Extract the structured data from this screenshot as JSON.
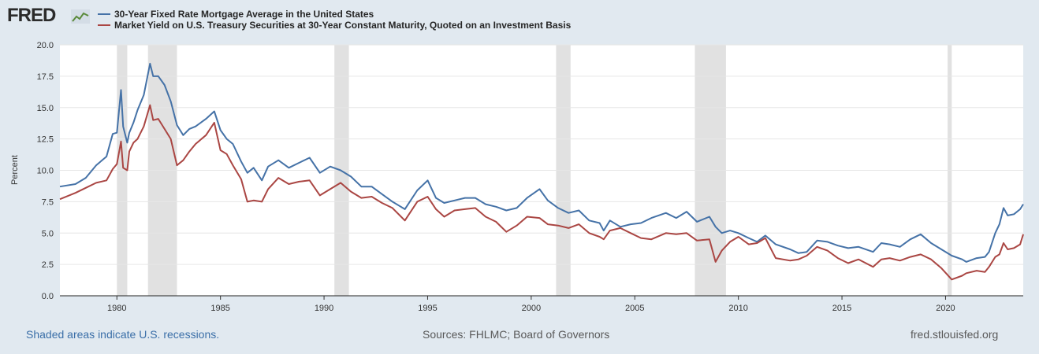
{
  "logo": {
    "text": "FRED",
    "icon": "line-chart-icon"
  },
  "colors": {
    "series1": "#4572a7",
    "series2": "#aa4643",
    "recession": "#e1e1e1",
    "grid": "#e6e6e6",
    "axis": "#222222"
  },
  "footer": {
    "note": "Shaded areas indicate U.S. recessions.",
    "sources": "Sources: FHLMC; Board of Governors",
    "site": "fred.stlouisfed.org"
  },
  "chart_data": {
    "type": "line",
    "ylabel": "Percent",
    "xlabel": "",
    "xlim": [
      1977.25,
      2023.75
    ],
    "ylim": [
      0,
      20
    ],
    "x_ticks": [
      "1980",
      "1985",
      "1990",
      "1995",
      "2000",
      "2005",
      "2010",
      "2015",
      "2020"
    ],
    "y_ticks": [
      "0.0",
      "2.5",
      "5.0",
      "7.5",
      "10.0",
      "12.5",
      "15.0",
      "17.5",
      "20.0"
    ],
    "grid": true,
    "legend_position": "top-left",
    "recessions": [
      [
        1980.0,
        1980.5
      ],
      [
        1981.5,
        1982.9
      ],
      [
        1990.5,
        1991.2
      ],
      [
        2001.2,
        2001.9
      ],
      [
        2007.9,
        2009.4
      ],
      [
        2020.1,
        2020.3
      ]
    ],
    "series": [
      {
        "name": "30-Year Fixed Rate Mortgage Average in the United States",
        "x": [
          1977.25,
          1978.0,
          1978.5,
          1979.0,
          1979.5,
          1979.8,
          1980.0,
          1980.2,
          1980.3,
          1980.5,
          1980.6,
          1980.8,
          1981.0,
          1981.3,
          1981.6,
          1981.75,
          1982.0,
          1982.3,
          1982.6,
          1982.9,
          1983.2,
          1983.5,
          1983.8,
          1984.3,
          1984.7,
          1985.0,
          1985.3,
          1985.6,
          1986.0,
          1986.3,
          1986.6,
          1987.0,
          1987.3,
          1987.8,
          1988.3,
          1988.8,
          1989.3,
          1989.8,
          1990.3,
          1990.8,
          1991.3,
          1991.8,
          1992.3,
          1992.8,
          1993.3,
          1993.9,
          1994.5,
          1995.0,
          1995.4,
          1995.8,
          1996.3,
          1996.8,
          1997.3,
          1997.8,
          1998.3,
          1998.8,
          1999.3,
          1999.8,
          2000.4,
          2000.8,
          2001.3,
          2001.8,
          2002.3,
          2002.8,
          2003.3,
          2003.5,
          2003.8,
          2004.3,
          2004.8,
          2005.3,
          2005.8,
          2006.5,
          2007.0,
          2007.5,
          2008.0,
          2008.6,
          2008.9,
          2009.2,
          2009.6,
          2010.0,
          2010.5,
          2010.9,
          2011.3,
          2011.8,
          2012.5,
          2012.9,
          2013.3,
          2013.8,
          2014.3,
          2014.8,
          2015.3,
          2015.8,
          2016.5,
          2016.9,
          2017.3,
          2017.8,
          2018.3,
          2018.8,
          2019.3,
          2019.8,
          2020.3,
          2020.8,
          2021.0,
          2021.5,
          2021.9,
          2022.1,
          2022.4,
          2022.6,
          2022.8,
          2023.0,
          2023.3,
          2023.6,
          2023.75
        ],
        "values": [
          8.7,
          8.9,
          9.4,
          10.4,
          11.1,
          12.9,
          13.0,
          16.4,
          13.5,
          12.2,
          13.0,
          13.8,
          14.8,
          16.0,
          18.5,
          17.5,
          17.5,
          16.8,
          15.5,
          13.6,
          12.8,
          13.3,
          13.5,
          14.1,
          14.7,
          13.2,
          12.5,
          12.1,
          10.7,
          9.8,
          10.2,
          9.2,
          10.3,
          10.8,
          10.2,
          10.6,
          11.0,
          9.8,
          10.3,
          10.0,
          9.5,
          8.7,
          8.7,
          8.1,
          7.5,
          6.9,
          8.4,
          9.2,
          7.8,
          7.4,
          7.6,
          7.8,
          7.8,
          7.3,
          7.1,
          6.8,
          7.0,
          7.8,
          8.5,
          7.6,
          7.0,
          6.6,
          6.8,
          6.0,
          5.8,
          5.2,
          6.0,
          5.5,
          5.7,
          5.8,
          6.2,
          6.6,
          6.2,
          6.7,
          5.9,
          6.3,
          5.5,
          5.0,
          5.2,
          5.0,
          4.6,
          4.3,
          4.8,
          4.1,
          3.7,
          3.4,
          3.5,
          4.4,
          4.3,
          4.0,
          3.8,
          3.9,
          3.5,
          4.2,
          4.1,
          3.9,
          4.5,
          4.9,
          4.2,
          3.7,
          3.2,
          2.9,
          2.7,
          3.0,
          3.1,
          3.5,
          5.0,
          5.7,
          7.0,
          6.4,
          6.5,
          6.9,
          7.3
        ]
      },
      {
        "name": "Market Yield on U.S. Treasury Securities at 30-Year Constant Maturity, Quoted on an Investment Basis",
        "x": [
          1977.25,
          1978.0,
          1978.5,
          1979.0,
          1979.5,
          1979.8,
          1980.0,
          1980.2,
          1980.3,
          1980.5,
          1980.6,
          1980.8,
          1981.0,
          1981.3,
          1981.6,
          1981.75,
          1982.0,
          1982.3,
          1982.6,
          1982.9,
          1983.2,
          1983.5,
          1983.8,
          1984.3,
          1984.7,
          1985.0,
          1985.3,
          1985.6,
          1986.0,
          1986.3,
          1986.6,
          1987.0,
          1987.3,
          1987.8,
          1988.3,
          1988.8,
          1989.3,
          1989.8,
          1990.3,
          1990.8,
          1991.3,
          1991.8,
          1992.3,
          1992.8,
          1993.3,
          1993.9,
          1994.5,
          1995.0,
          1995.4,
          1995.8,
          1996.3,
          1996.8,
          1997.3,
          1997.8,
          1998.3,
          1998.8,
          1999.3,
          1999.8,
          2000.4,
          2000.8,
          2001.3,
          2001.8,
          2002.3,
          2002.8,
          2003.3,
          2003.5,
          2003.8,
          2004.3,
          2004.8,
          2005.3,
          2005.8,
          2006.5,
          2007.0,
          2007.5,
          2008.0,
          2008.6,
          2008.9,
          2009.2,
          2009.6,
          2010.0,
          2010.5,
          2010.9,
          2011.3,
          2011.8,
          2012.5,
          2012.9,
          2013.3,
          2013.8,
          2014.3,
          2014.8,
          2015.3,
          2015.8,
          2016.5,
          2016.9,
          2017.3,
          2017.8,
          2018.3,
          2018.8,
          2019.3,
          2019.8,
          2020.3,
          2020.8,
          2021.0,
          2021.5,
          2021.9,
          2022.1,
          2022.4,
          2022.6,
          2022.8,
          2023.0,
          2023.3,
          2023.6,
          2023.75
        ],
        "values": [
          7.7,
          8.2,
          8.6,
          9.0,
          9.2,
          10.1,
          10.5,
          12.3,
          10.2,
          10.0,
          11.5,
          12.2,
          12.5,
          13.5,
          15.2,
          14.0,
          14.1,
          13.3,
          12.5,
          10.4,
          10.8,
          11.5,
          12.1,
          12.8,
          13.8,
          11.6,
          11.3,
          10.4,
          9.3,
          7.5,
          7.6,
          7.5,
          8.5,
          9.4,
          8.9,
          9.1,
          9.2,
          8.0,
          8.5,
          9.0,
          8.3,
          7.8,
          7.9,
          7.4,
          7.0,
          6.0,
          7.5,
          7.9,
          6.9,
          6.3,
          6.8,
          6.9,
          7.0,
          6.3,
          5.9,
          5.1,
          5.6,
          6.3,
          6.2,
          5.7,
          5.6,
          5.4,
          5.7,
          5.0,
          4.7,
          4.5,
          5.2,
          5.4,
          5.0,
          4.6,
          4.5,
          5.0,
          4.9,
          5.0,
          4.4,
          4.5,
          2.7,
          3.6,
          4.3,
          4.7,
          4.1,
          4.2,
          4.6,
          3.0,
          2.8,
          2.9,
          3.2,
          3.9,
          3.6,
          3.0,
          2.6,
          2.9,
          2.3,
          2.9,
          3.0,
          2.8,
          3.1,
          3.3,
          2.9,
          2.2,
          1.3,
          1.6,
          1.8,
          2.0,
          1.9,
          2.3,
          3.1,
          3.3,
          4.2,
          3.7,
          3.8,
          4.1,
          4.9
        ]
      }
    ]
  }
}
